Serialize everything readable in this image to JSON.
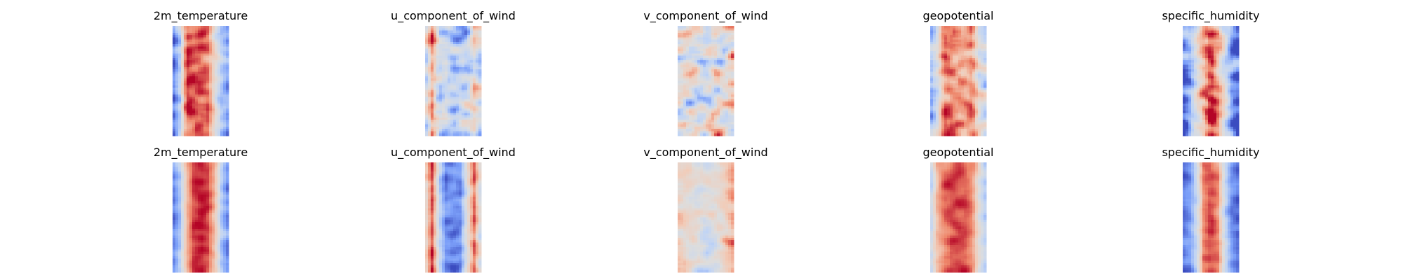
{
  "chart_data": {
    "type": "heatmap",
    "colormap": "coolwarm",
    "colormap_stops": [
      "#3b4cc0",
      "#7b9ff9",
      "#c0d4f5",
      "#dddddd",
      "#f2cbb7",
      "#ee8468",
      "#b40426"
    ],
    "axes_visible": false,
    "rows": [
      {
        "panels": [
          {
            "title": "2m_temperature",
            "profile": [
              0.08,
              0.35,
              0.9,
              0.88,
              0.9,
              0.85,
              0.55,
              0.3,
              0.15
            ],
            "noise": 0.09
          },
          {
            "title": "u_component_of_wind",
            "profile": [
              0.45,
              0.75,
              0.3,
              0.35,
              0.3,
              0.38,
              0.32,
              0.6,
              0.4
            ],
            "noise": 0.16
          },
          {
            "title": "v_component_of_wind",
            "profile": [
              0.5,
              0.52,
              0.5,
              0.48,
              0.5,
              0.52,
              0.5,
              0.47,
              0.5
            ],
            "noise": 0.2
          },
          {
            "title": "geopotential",
            "profile": [
              0.2,
              0.45,
              0.82,
              0.85,
              0.8,
              0.78,
              0.82,
              0.5,
              0.35
            ],
            "noise": 0.13
          },
          {
            "title": "specific_humidity",
            "profile": [
              0.05,
              0.2,
              0.45,
              0.75,
              0.95,
              0.75,
              0.45,
              0.2,
              0.05
            ],
            "noise": 0.14
          }
        ]
      },
      {
        "panels": [
          {
            "title": "2m_temperature",
            "profile": [
              0.12,
              0.3,
              0.7,
              0.93,
              0.96,
              0.93,
              0.7,
              0.3,
              0.12
            ],
            "noise": 0.05
          },
          {
            "title": "u_component_of_wind",
            "profile": [
              0.55,
              0.9,
              0.4,
              0.12,
              0.1,
              0.12,
              0.5,
              0.88,
              0.45
            ],
            "noise": 0.07
          },
          {
            "title": "v_component_of_wind",
            "profile": [
              0.62,
              0.6,
              0.54,
              0.5,
              0.48,
              0.5,
              0.55,
              0.62,
              0.72
            ],
            "noise": 0.1
          },
          {
            "title": "geopotential",
            "profile": [
              0.35,
              0.72,
              0.86,
              0.9,
              0.9,
              0.88,
              0.8,
              0.5,
              0.3
            ],
            "noise": 0.05
          },
          {
            "title": "specific_humidity",
            "profile": [
              0.05,
              0.15,
              0.4,
              0.82,
              0.92,
              0.82,
              0.4,
              0.15,
              0.05
            ],
            "noise": 0.06
          }
        ]
      }
    ]
  }
}
